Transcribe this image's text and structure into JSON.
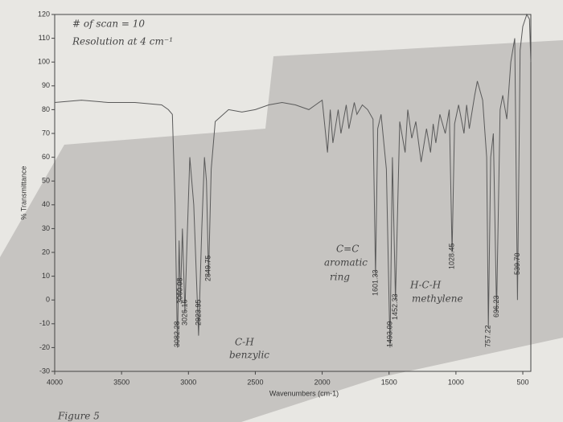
{
  "chart_data": {
    "type": "line",
    "xlabel": "Wavenumbers (cm-1)",
    "ylabel": "% Transmittance",
    "xlim": [
      4000,
      440
    ],
    "xticks": [
      4000,
      3500,
      3000,
      2500,
      2000,
      1500,
      1000,
      500
    ],
    "ylim": [
      -30,
      120
    ],
    "yticks": [
      -30,
      -20,
      -10,
      0,
      10,
      20,
      30,
      40,
      50,
      60,
      70,
      80,
      90,
      100,
      110,
      120
    ],
    "color": "#5a5a5a",
    "x": [
      4000,
      3800,
      3600,
      3400,
      3200,
      3150,
      3120,
      3100,
      3082.28,
      3070,
      3060.08,
      3045,
      3026.16,
      3010,
      2990,
      2960,
      2923.95,
      2900,
      2880,
      2865,
      2849.75,
      2830,
      2800,
      2700,
      2600,
      2500,
      2400,
      2300,
      2200,
      2100,
      2050,
      2000,
      1960,
      1940,
      1920,
      1880,
      1860,
      1820,
      1800,
      1760,
      1740,
      1700,
      1660,
      1620,
      1601.33,
      1585,
      1560,
      1520,
      1493.09,
      1475,
      1452.33,
      1420,
      1380,
      1360,
      1330,
      1300,
      1260,
      1220,
      1190,
      1170,
      1150,
      1120,
      1080,
      1050,
      1028.45,
      1010,
      980,
      940,
      920,
      900,
      860,
      840,
      800,
      770,
      757.22,
      740,
      720,
      696.23,
      670,
      650,
      620,
      590,
      560,
      539.7,
      520,
      500,
      470,
      450,
      440
    ],
    "values": [
      83,
      84,
      83,
      83,
      82,
      80,
      78,
      40,
      -20,
      25,
      0,
      30,
      -5,
      25,
      60,
      40,
      -15,
      30,
      60,
      50,
      10,
      55,
      75,
      80,
      79,
      80,
      82,
      83,
      82,
      80,
      82,
      84,
      62,
      80,
      66,
      80,
      70,
      82,
      72,
      83,
      78,
      82,
      80,
      76,
      10,
      72,
      78,
      55,
      -20,
      60,
      0,
      75,
      62,
      80,
      68,
      75,
      58,
      72,
      62,
      74,
      66,
      78,
      70,
      80,
      20,
      74,
      82,
      70,
      82,
      72,
      86,
      92,
      84,
      60,
      -12,
      60,
      70,
      -5,
      80,
      86,
      76,
      100,
      110,
      0,
      105,
      115,
      120,
      118,
      100
    ],
    "peaks": [
      {
        "value": 3082.28,
        "label": "3082.28"
      },
      {
        "value": 3060.08,
        "label": "3060.08"
      },
      {
        "value": 3026.16,
        "label": "3026.16"
      },
      {
        "value": 2923.95,
        "label": "2923.95"
      },
      {
        "value": 2849.75,
        "label": "2849.75"
      },
      {
        "value": 1601.33,
        "label": "1601.33"
      },
      {
        "value": 1493.09,
        "label": "1493.09"
      },
      {
        "value": 1452.33,
        "label": "1452.33"
      },
      {
        "value": 1028.45,
        "label": "1028.45"
      },
      {
        "value": 757.22,
        "label": "757.22"
      },
      {
        "value": 696.23,
        "label": "696.23"
      },
      {
        "value": 539.7,
        "label": "539.70"
      }
    ],
    "annotations": [
      "# of scan = 10",
      "Resolution at 4 cm⁻¹",
      "C-H",
      "benzylic",
      "C=C",
      "aromatic",
      "ring",
      "H-C-H",
      "methylene",
      "Figure 5"
    ]
  }
}
